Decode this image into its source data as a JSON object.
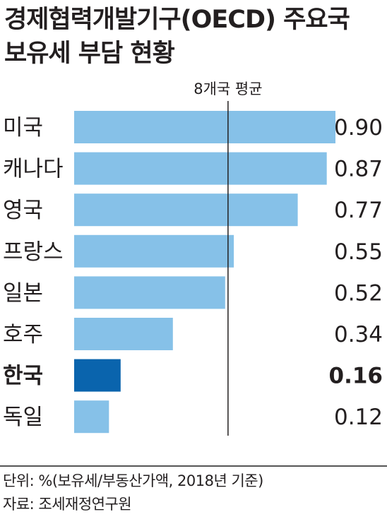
{
  "title_lines": [
    "경제협력개발기구(OECD) 주요국",
    "보유세 부담 현황"
  ],
  "footnotes": {
    "unit": "단위: %(보유세/부동산가액, 2018년 기준)",
    "source": "자료: 조세재정연구원"
  },
  "colors": {
    "bar": "#86c1e8",
    "highlight_bar": "#0a64ad",
    "text": "#231f20",
    "reference_line": "#231f20"
  },
  "chart_data": {
    "type": "bar",
    "orientation": "horizontal",
    "categories": [
      "미국",
      "캐나다",
      "영국",
      "프랑스",
      "일본",
      "호주",
      "한국",
      "독일"
    ],
    "values": [
      0.9,
      0.87,
      0.77,
      0.55,
      0.52,
      0.34,
      0.16,
      0.12
    ],
    "value_labels": [
      "0.90",
      "0.87",
      "0.77",
      "0.55",
      "0.52",
      "0.34",
      "0.16",
      "0.12"
    ],
    "highlight": "한국",
    "reference_line": {
      "label": "8개국 평균",
      "value": 0.53
    },
    "xlim": [
      0,
      0.9
    ]
  }
}
